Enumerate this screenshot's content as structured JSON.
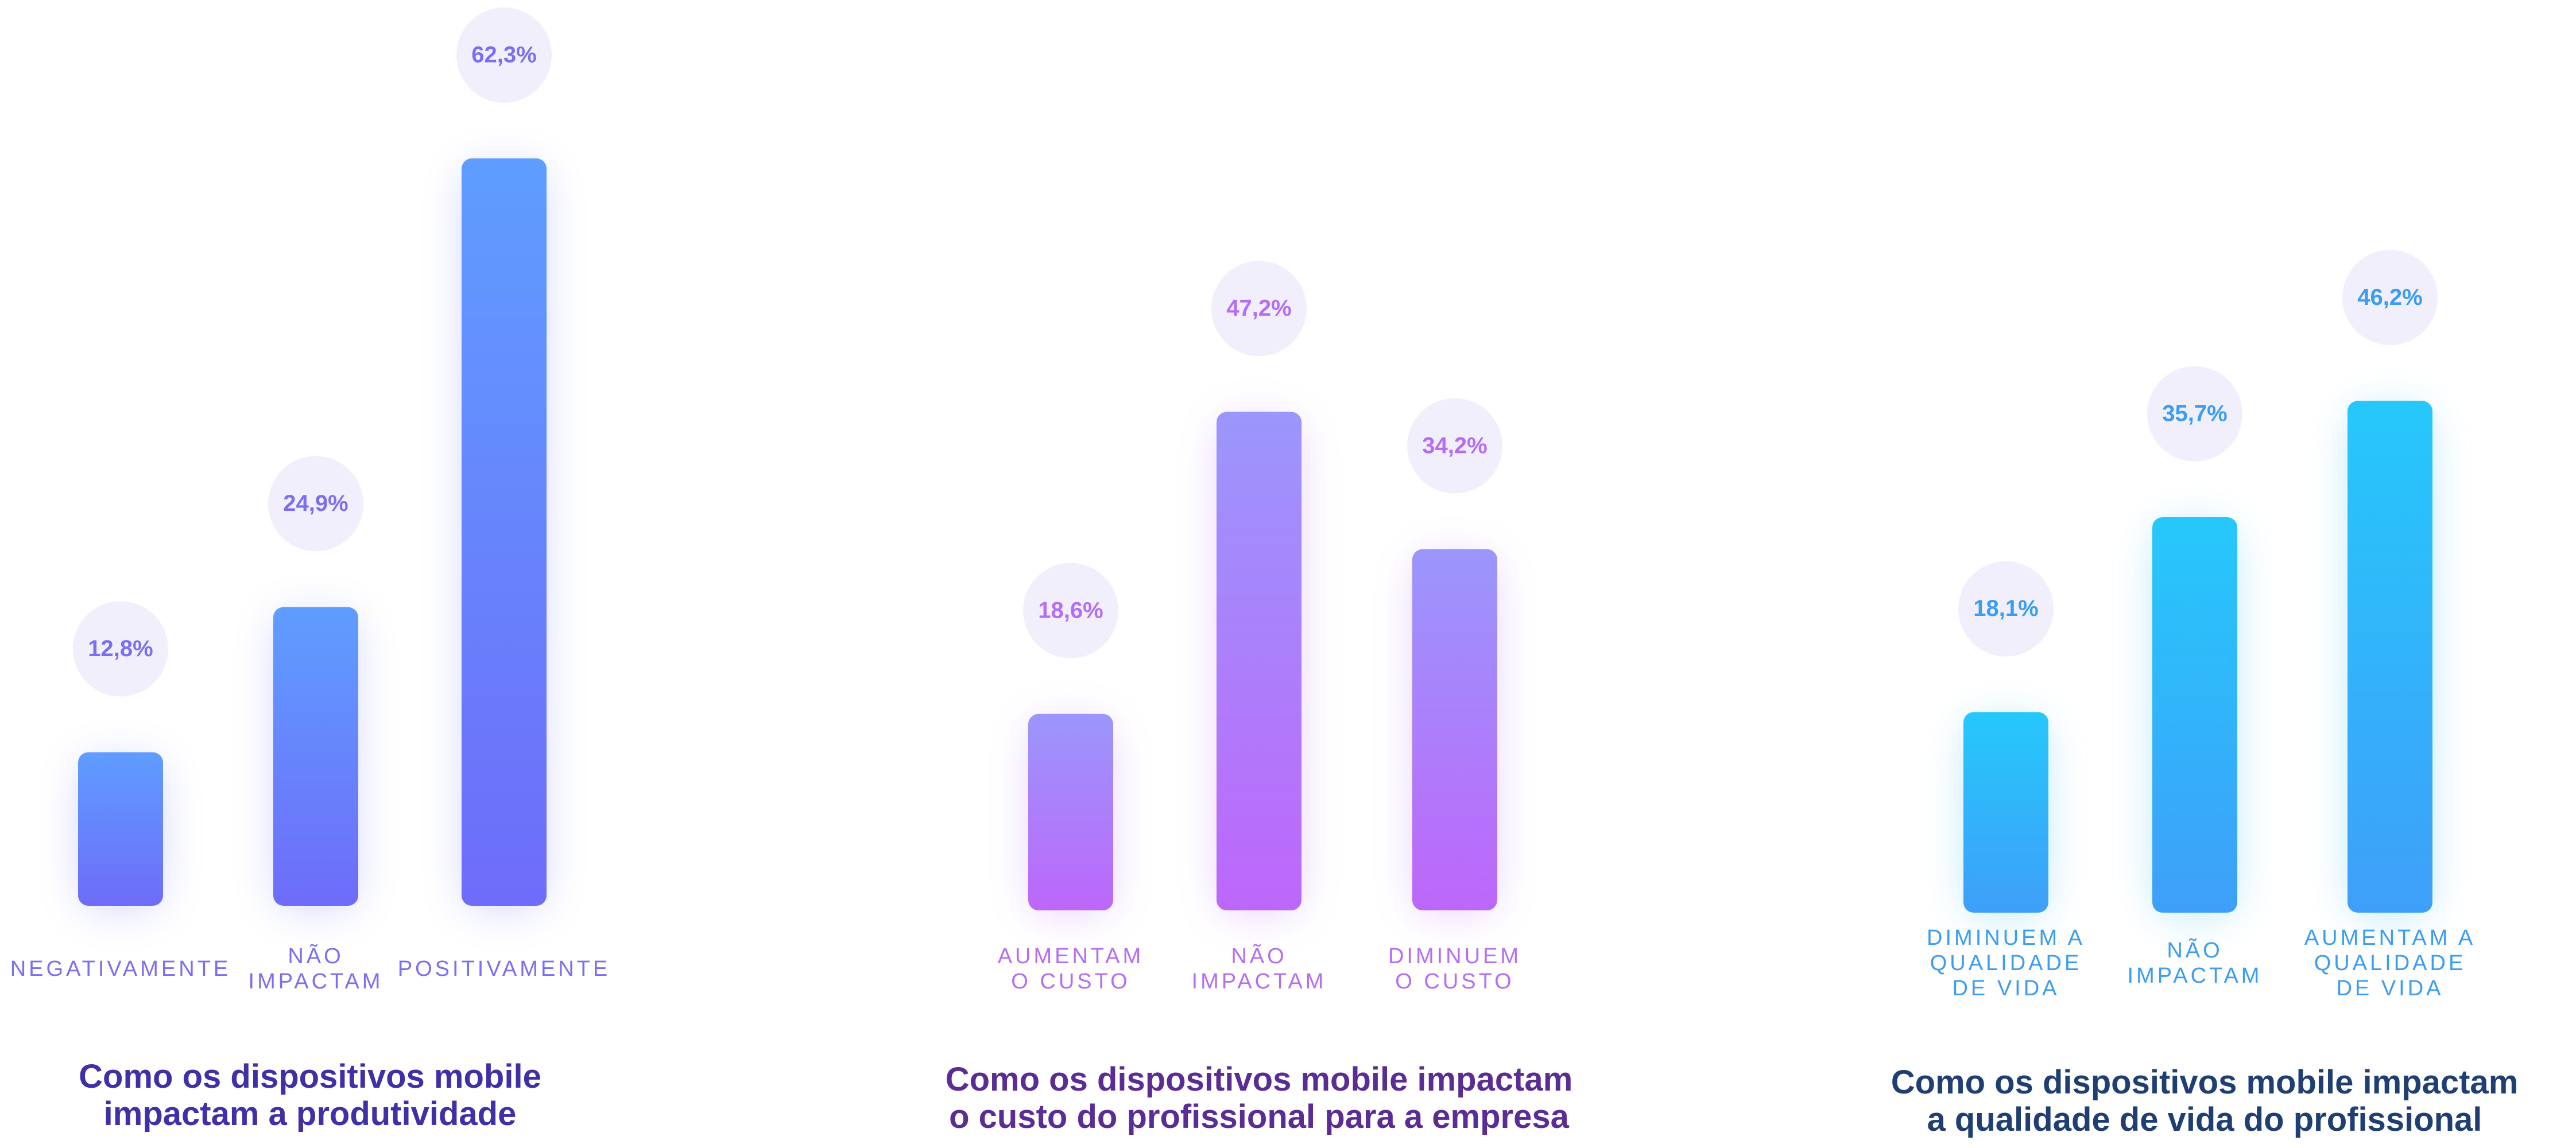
{
  "chart_data": [
    {
      "type": "bar",
      "title": "Como os dispositivos mobile impactam a produtividade",
      "categories": [
        "NEGATIVAMENTE",
        "NÃO IMPACTAM",
        "POSITIVAMENTE"
      ],
      "values": [
        12.8,
        24.9,
        62.3
      ],
      "value_labels": [
        "12,8%",
        "24,9%",
        "62,3%"
      ],
      "unit": "%",
      "colors": {
        "bar_top": "#5f9dff",
        "bar_bottom": "#6e6cf9",
        "label": "#7a6ff2",
        "title": "#3f30a8",
        "glow": "#6f7cff"
      }
    },
    {
      "type": "bar",
      "title": "Como os dispositivos mobile impactam o custo do profissional para a empresa",
      "categories": [
        "AUMENTAM O CUSTO",
        "NÃO IMPACTAM",
        "DIMINUEM O CUSTO"
      ],
      "values": [
        18.6,
        47.2,
        34.2
      ],
      "value_labels": [
        "18,6%",
        "47,2%",
        "34,2%"
      ],
      "unit": "%",
      "colors": {
        "bar_top": "#9b96fc",
        "bar_bottom": "#bd67fa",
        "label": "#b56cf6",
        "title": "#5b2d94",
        "glow": "#b46cf6"
      }
    },
    {
      "type": "bar",
      "title": "Como os dispositivos mobile impactam a qualidade de vida do profissional",
      "categories": [
        "DIMINUEM A QUALIDADE DE VIDA",
        "NÃO IMPACTAM",
        "AUMENTAM A QUALIDADE DE VIDA"
      ],
      "values": [
        18.1,
        35.7,
        46.2
      ],
      "value_labels": [
        "18,1%",
        "35,7%",
        "46,2%"
      ],
      "unit": "%",
      "colors": {
        "bar_top": "#26c8fb",
        "bar_bottom": "#3e9ff9",
        "label": "#3a9cf2",
        "title": "#1f3f73",
        "glow": "#2ab8f8"
      }
    }
  ]
}
